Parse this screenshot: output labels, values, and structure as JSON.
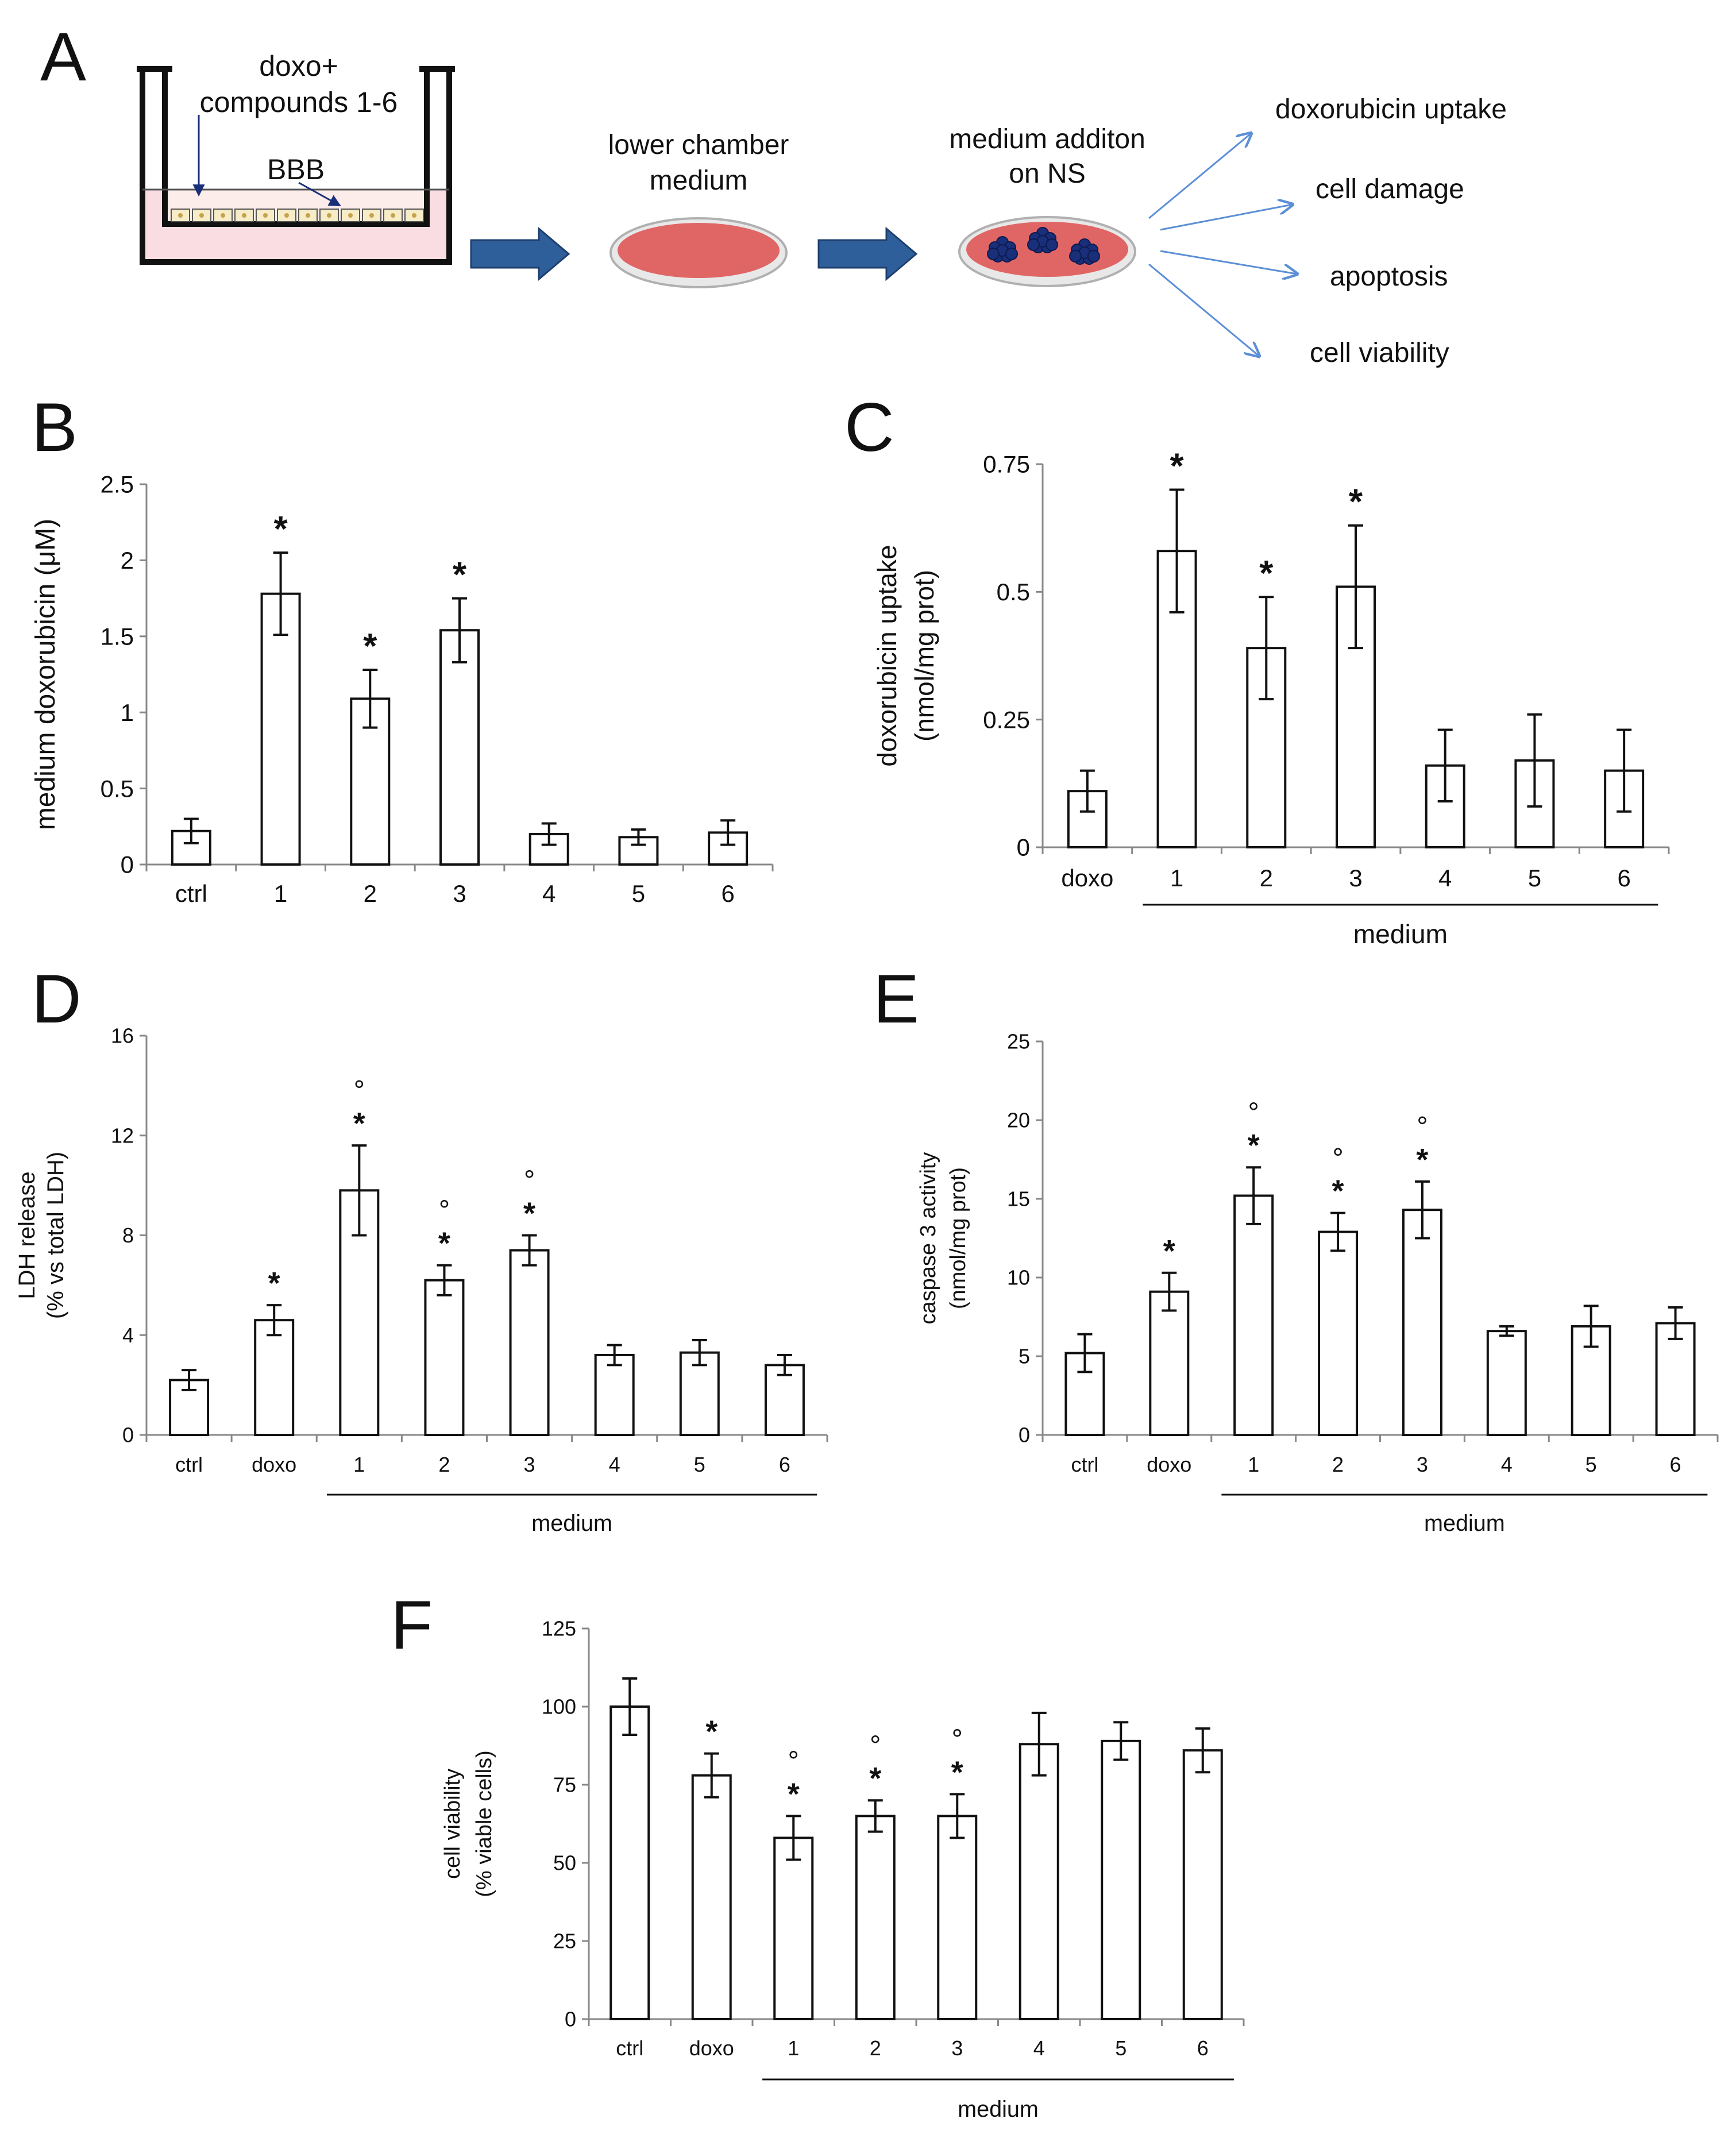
{
  "panel_a": {
    "letter": "A",
    "treatment_line1": "doxo+",
    "treatment_line2": "compounds 1-6",
    "barrier_label": "BBB",
    "dish1_line1": "lower chamber",
    "dish1_line2": "medium",
    "dish2_line1": "medium additon",
    "dish2_line2": "on NS",
    "outcomes": [
      "doxorubicin uptake",
      "cell damage",
      "apoptosis",
      "cell viability"
    ],
    "colors": {
      "arrow": "#2f5f9a",
      "medium": "#e06666",
      "spheres": "#1a2f7a",
      "outcome_arrow": "#5b8fd6"
    }
  },
  "chart_data": [
    {
      "panel": "B",
      "type": "bar",
      "title": "",
      "categories": [
        "ctrl",
        "1",
        "2",
        "3",
        "4",
        "5",
        "6"
      ],
      "values": [
        0.22,
        1.78,
        1.09,
        1.54,
        0.2,
        0.18,
        0.21
      ],
      "errors": [
        0.08,
        0.27,
        0.19,
        0.21,
        0.07,
        0.05,
        0.08
      ],
      "significance": [
        "",
        "*",
        "*",
        "*",
        "",
        "",
        ""
      ],
      "significance2": [
        "",
        "",
        "",
        "",
        "",
        "",
        ""
      ],
      "ylabel": [
        "medium doxorubicin (μM)"
      ],
      "xlabel": "",
      "ylim": [
        0,
        2.5
      ],
      "yticks": [
        0,
        0.5,
        1,
        1.5,
        2,
        2.5
      ],
      "ytick_labels": [
        "0",
        "0.5",
        "1",
        "1.5",
        "2",
        "2.5"
      ],
      "group_label": "",
      "group_from": null,
      "group_to": null
    },
    {
      "panel": "C",
      "type": "bar",
      "title": "",
      "categories": [
        "doxo",
        "1",
        "2",
        "3",
        "4",
        "5",
        "6"
      ],
      "values": [
        0.11,
        0.58,
        0.39,
        0.51,
        0.16,
        0.17,
        0.15
      ],
      "errors": [
        0.04,
        0.12,
        0.1,
        0.12,
        0.07,
        0.09,
        0.08
      ],
      "significance": [
        "",
        "*",
        "*",
        "*",
        "",
        "",
        ""
      ],
      "significance2": [
        "",
        "",
        "",
        "",
        "",
        "",
        ""
      ],
      "ylabel": [
        "doxorubicin uptake",
        "(nmol/mg prot)"
      ],
      "xlabel": "",
      "ylim": [
        0,
        0.75
      ],
      "yticks": [
        0,
        0.25,
        0.5,
        0.75
      ],
      "ytick_labels": [
        "0",
        "0.25",
        "0.5",
        "0.75"
      ],
      "group_label": "medium",
      "group_from": 1,
      "group_to": 6
    },
    {
      "panel": "D",
      "type": "bar",
      "title": "",
      "categories": [
        "ctrl",
        "doxo",
        "1",
        "2",
        "3",
        "4",
        "5",
        "6"
      ],
      "values": [
        2.2,
        4.6,
        9.8,
        6.2,
        7.4,
        3.2,
        3.3,
        2.8
      ],
      "errors": [
        0.4,
        0.6,
        1.8,
        0.6,
        0.6,
        0.4,
        0.5,
        0.4
      ],
      "significance": [
        "",
        "*",
        "*",
        "*",
        "*",
        "",
        "",
        ""
      ],
      "significance2": [
        "",
        "",
        "°",
        "°",
        "°",
        "",
        "",
        ""
      ],
      "ylabel": [
        "LDH release",
        "(% vs total LDH)"
      ],
      "xlabel": "",
      "ylim": [
        0,
        16
      ],
      "yticks": [
        0,
        4,
        8,
        12,
        16
      ],
      "ytick_labels": [
        "0",
        "4",
        "8",
        "12",
        "16"
      ],
      "group_label": "medium",
      "group_from": 2,
      "group_to": 7
    },
    {
      "panel": "E",
      "type": "bar",
      "title": "",
      "categories": [
        "ctrl",
        "doxo",
        "1",
        "2",
        "3",
        "4",
        "5",
        "6"
      ],
      "values": [
        5.2,
        9.1,
        15.2,
        12.9,
        14.3,
        6.6,
        6.9,
        7.1
      ],
      "errors": [
        1.2,
        1.2,
        1.8,
        1.2,
        1.8,
        0.3,
        1.3,
        1.0
      ],
      "significance": [
        "",
        "*",
        "*",
        "*",
        "*",
        "",
        "",
        ""
      ],
      "significance2": [
        "",
        "",
        "°",
        "°",
        "°",
        "",
        "",
        ""
      ],
      "ylabel": [
        "caspase 3 activity",
        "(nmol/mg prot)"
      ],
      "xlabel": "",
      "ylim": [
        0,
        25
      ],
      "yticks": [
        0,
        5,
        10,
        15,
        20,
        25
      ],
      "ytick_labels": [
        "0",
        "5",
        "10",
        "15",
        "20",
        "25"
      ],
      "group_label": "medium",
      "group_from": 2,
      "group_to": 7
    },
    {
      "panel": "F",
      "type": "bar",
      "title": "",
      "categories": [
        "ctrl",
        "doxo",
        "1",
        "2",
        "3",
        "4",
        "5",
        "6"
      ],
      "values": [
        100,
        78,
        58,
        65,
        65,
        88,
        89,
        86
      ],
      "errors": [
        9,
        7,
        7,
        5,
        7,
        10,
        6,
        7
      ],
      "significance": [
        "",
        "*",
        "*",
        "*",
        "*",
        "",
        "",
        ""
      ],
      "significance2": [
        "",
        "",
        "°",
        "°",
        "°",
        "",
        "",
        ""
      ],
      "ylabel": [
        "cell viability",
        "(% viable cells)"
      ],
      "xlabel": "",
      "ylim": [
        0,
        125
      ],
      "yticks": [
        0,
        25,
        50,
        75,
        100,
        125
      ],
      "ytick_labels": [
        "0",
        "25",
        "50",
        "75",
        "100",
        "125"
      ],
      "group_label": "medium",
      "group_from": 2,
      "group_to": 7
    }
  ]
}
